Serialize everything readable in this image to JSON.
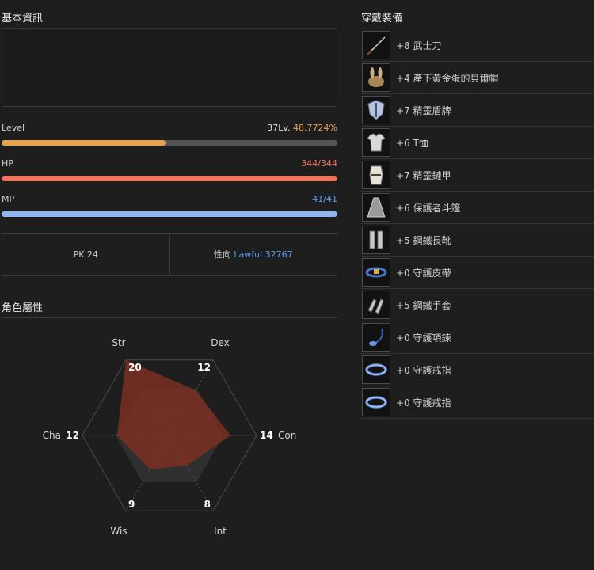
{
  "basic_info": {
    "title": "基本資訊",
    "level": {
      "label": "Level",
      "level_text": "37Lv.",
      "percent_text": "48.7724%",
      "fraction": 0.487724,
      "color": "#e8a24f"
    },
    "hp": {
      "label": "HP",
      "value_text": "344/344",
      "fraction": 1.0,
      "color": "#f0715c"
    },
    "mp": {
      "label": "MP",
      "value_text": "41/41",
      "fraction": 1.0,
      "color": "#8fb6f0"
    },
    "pk": {
      "label": "PK",
      "value": "24"
    },
    "alignment": {
      "label": "性向",
      "value": "Lawful 32767",
      "color": "#5aa0f0"
    }
  },
  "attributes": {
    "title": "角色屬性",
    "max": 20,
    "stats": [
      {
        "name": "Str",
        "value": 20
      },
      {
        "name": "Dex",
        "value": 12
      },
      {
        "name": "Con",
        "value": 14
      },
      {
        "name": "Int",
        "value": 8
      },
      {
        "name": "Wis",
        "value": 9
      },
      {
        "name": "Cha",
        "value": 12
      }
    ],
    "fill_color": "#7a2f22"
  },
  "equipment": {
    "title": "穿戴裝備",
    "items": [
      {
        "label": "+8 武士刀",
        "icon": "katana-icon"
      },
      {
        "label": "+4 產下黃金蛋的貝爾帽",
        "icon": "bunny-hat-icon"
      },
      {
        "label": "+7 精靈盾牌",
        "icon": "elven-shield-icon"
      },
      {
        "label": "+6 T恤",
        "icon": "tshirt-icon"
      },
      {
        "label": "+7 精靈鏈甲",
        "icon": "elven-mail-icon"
      },
      {
        "label": "+6 保護者斗篷",
        "icon": "cloak-icon"
      },
      {
        "label": "+5 鋼鐵長靴",
        "icon": "iron-boots-icon"
      },
      {
        "label": "+0 守護皮帶",
        "icon": "belt-icon"
      },
      {
        "label": "+5 鋼鐵手套",
        "icon": "iron-gloves-icon"
      },
      {
        "label": "+0 守護項鍊",
        "icon": "necklace-icon"
      },
      {
        "label": "+0 守護戒指",
        "icon": "ring-icon"
      },
      {
        "label": "+0 守護戒指",
        "icon": "ring-icon"
      }
    ]
  }
}
